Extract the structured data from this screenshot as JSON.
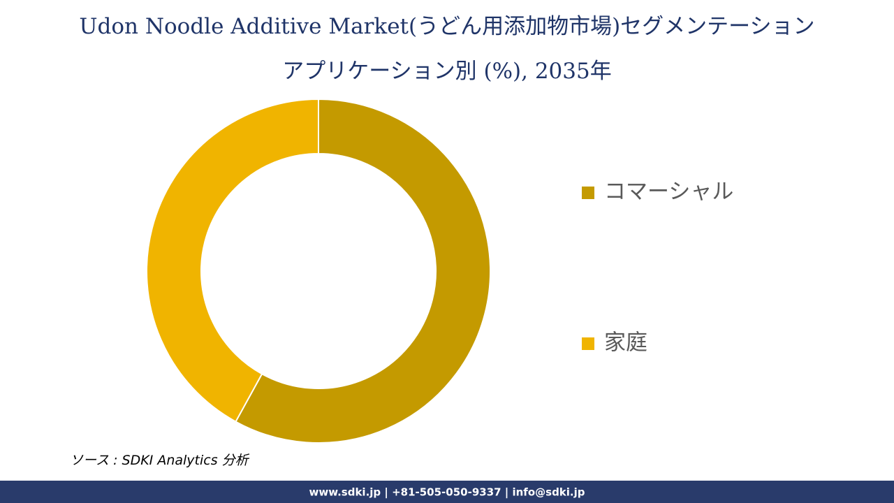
{
  "chart_data": {
    "type": "donut",
    "title": [
      "Udon Noodle Additive Market(うどん用添加物市場)セグメンテーション",
      "アプリケーション別 (%), 2035年"
    ],
    "series": [
      {
        "name": "コマーシャル",
        "color": "#c49a00",
        "values": [
          58
        ]
      },
      {
        "name": "家庭",
        "color": "#f0b400",
        "values": [
          42
        ]
      }
    ],
    "legend": "right"
  },
  "source": "ソース : SDKI Analytics 分析",
  "footer": "www.sdki.jp | +81-505-050-9337 | info@sdki.jp"
}
